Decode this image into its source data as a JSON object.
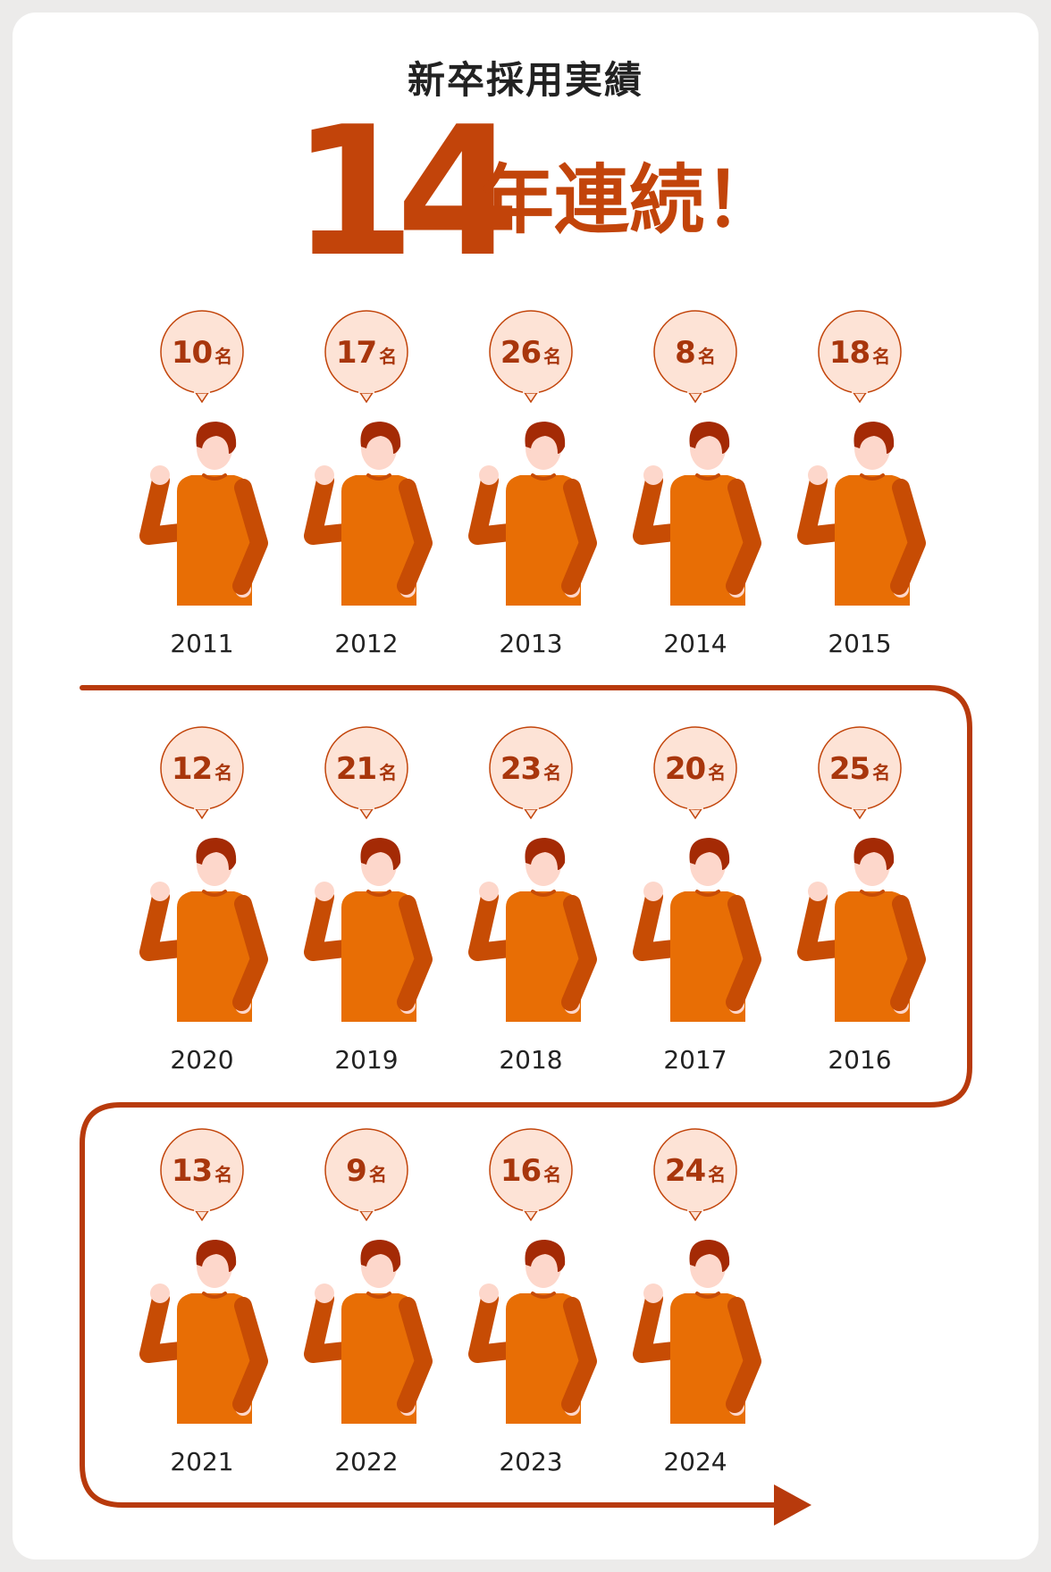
{
  "title": "新卒採用実績",
  "headline": {
    "number": "14",
    "suffix": "年連続！"
  },
  "unit": "名",
  "colors": {
    "accent": "#c2440a",
    "path": "#b83a0c",
    "bubble_fill": "#fde3d6",
    "sweater": "#e86e05",
    "arm": "#c74c04",
    "hair": "#a42a05",
    "skin": "#fdd7cb"
  },
  "chart_data": {
    "type": "pictograph-timeline",
    "title": "新卒採用実績",
    "subtitle": "14年連続！",
    "unit": "名",
    "rows": [
      [
        {
          "year": "2011",
          "count": "10"
        },
        {
          "year": "2012",
          "count": "17"
        },
        {
          "year": "2013",
          "count": "26"
        },
        {
          "year": "2014",
          "count": "8"
        },
        {
          "year": "2015",
          "count": "18"
        }
      ],
      [
        {
          "year": "2020",
          "count": "12"
        },
        {
          "year": "2019",
          "count": "21"
        },
        {
          "year": "2018",
          "count": "23"
        },
        {
          "year": "2017",
          "count": "20"
        },
        {
          "year": "2016",
          "count": "25"
        }
      ],
      [
        {
          "year": "2021",
          "count": "13"
        },
        {
          "year": "2022",
          "count": "9"
        },
        {
          "year": "2023",
          "count": "16"
        },
        {
          "year": "2024",
          "count": "24"
        }
      ]
    ]
  }
}
